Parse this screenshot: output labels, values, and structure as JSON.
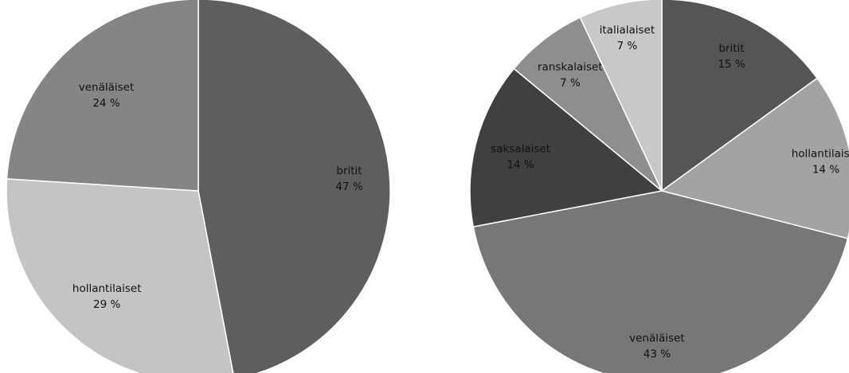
{
  "chart_data": [
    {
      "type": "pie",
      "title": "",
      "slices": [
        {
          "label": "britit",
          "value": 47,
          "value_text": "47 %",
          "color": "#5e5e5e"
        },
        {
          "label": "hollantilaiset",
          "value": 29,
          "value_text": "29 %",
          "color": "#c4c4c4"
        },
        {
          "label": "venäläiset",
          "value": 24,
          "value_text": "24 %",
          "color": "#858585"
        }
      ]
    },
    {
      "type": "pie",
      "title": "",
      "slices": [
        {
          "label": "britit",
          "value": 15,
          "value_text": "15 %",
          "color": "#555555"
        },
        {
          "label": "hollantilaiset",
          "value": 14,
          "value_text": "14 %",
          "color": "#a3a3a3"
        },
        {
          "label": "venäläiset",
          "value": 43,
          "value_text": "43 %",
          "color": "#777777"
        },
        {
          "label": "saksalaiset",
          "value": 14,
          "value_text": "14 %",
          "color": "#404040"
        },
        {
          "label": "ranskalaiset",
          "value": 7,
          "value_text": "7 %",
          "color": "#8e8e8e"
        },
        {
          "label": "italialaiset",
          "value": 7,
          "value_text": "7 %",
          "color": "#c8c8c8"
        }
      ]
    }
  ]
}
